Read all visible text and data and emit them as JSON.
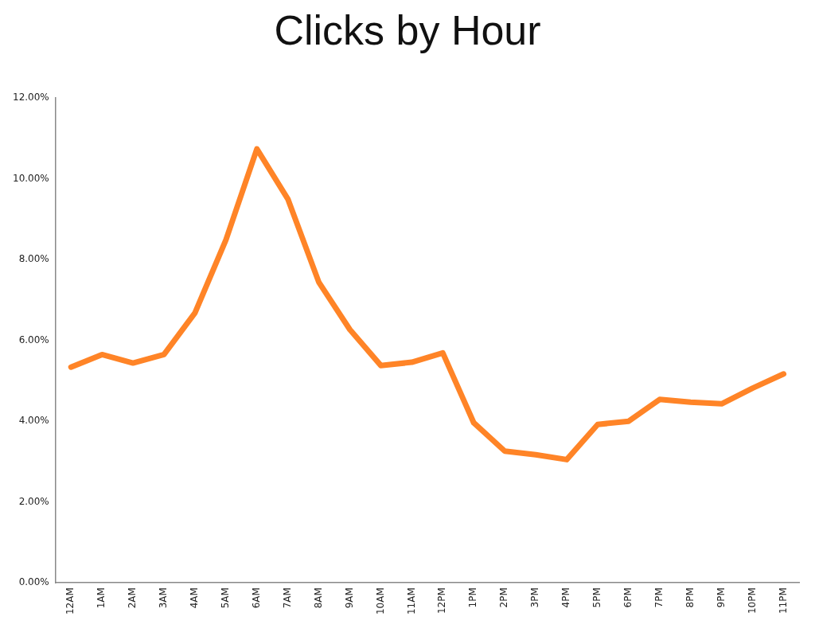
{
  "chart_data": {
    "type": "line",
    "title": "Clicks by Hour",
    "categories": [
      "12AM",
      "1AM",
      "2AM",
      "3AM",
      "4AM",
      "5AM",
      "6AM",
      "7AM",
      "8AM",
      "9AM",
      "10AM",
      "11AM",
      "12PM",
      "1PM",
      "2PM",
      "3PM",
      "4PM",
      "5PM",
      "6PM",
      "7PM",
      "8PM",
      "9PM",
      "10PM",
      "11PM"
    ],
    "series": [
      {
        "color": "#ff8427",
        "values": [
          5.34,
          5.65,
          5.44,
          5.65,
          6.68,
          8.49,
          10.74,
          9.5,
          7.44,
          6.27,
          5.38,
          5.46,
          5.69,
          3.96,
          3.26,
          3.17,
          3.05,
          3.92,
          4.0,
          4.54,
          4.47,
          4.43,
          4.82,
          5.17
        ]
      }
    ],
    "ylim": [
      0,
      12
    ],
    "yticks": [
      {
        "value": 0,
        "label": "0.00%"
      },
      {
        "value": 2,
        "label": "2.00%"
      },
      {
        "value": 4,
        "label": "4.00%"
      },
      {
        "value": 6,
        "label": "6.00%"
      },
      {
        "value": 8,
        "label": "8.00%"
      },
      {
        "value": 10,
        "label": "10.00%"
      },
      {
        "value": 12,
        "label": "12.00%"
      }
    ],
    "grid": false,
    "legend": false,
    "marker": "none",
    "line_style": "solid"
  }
}
